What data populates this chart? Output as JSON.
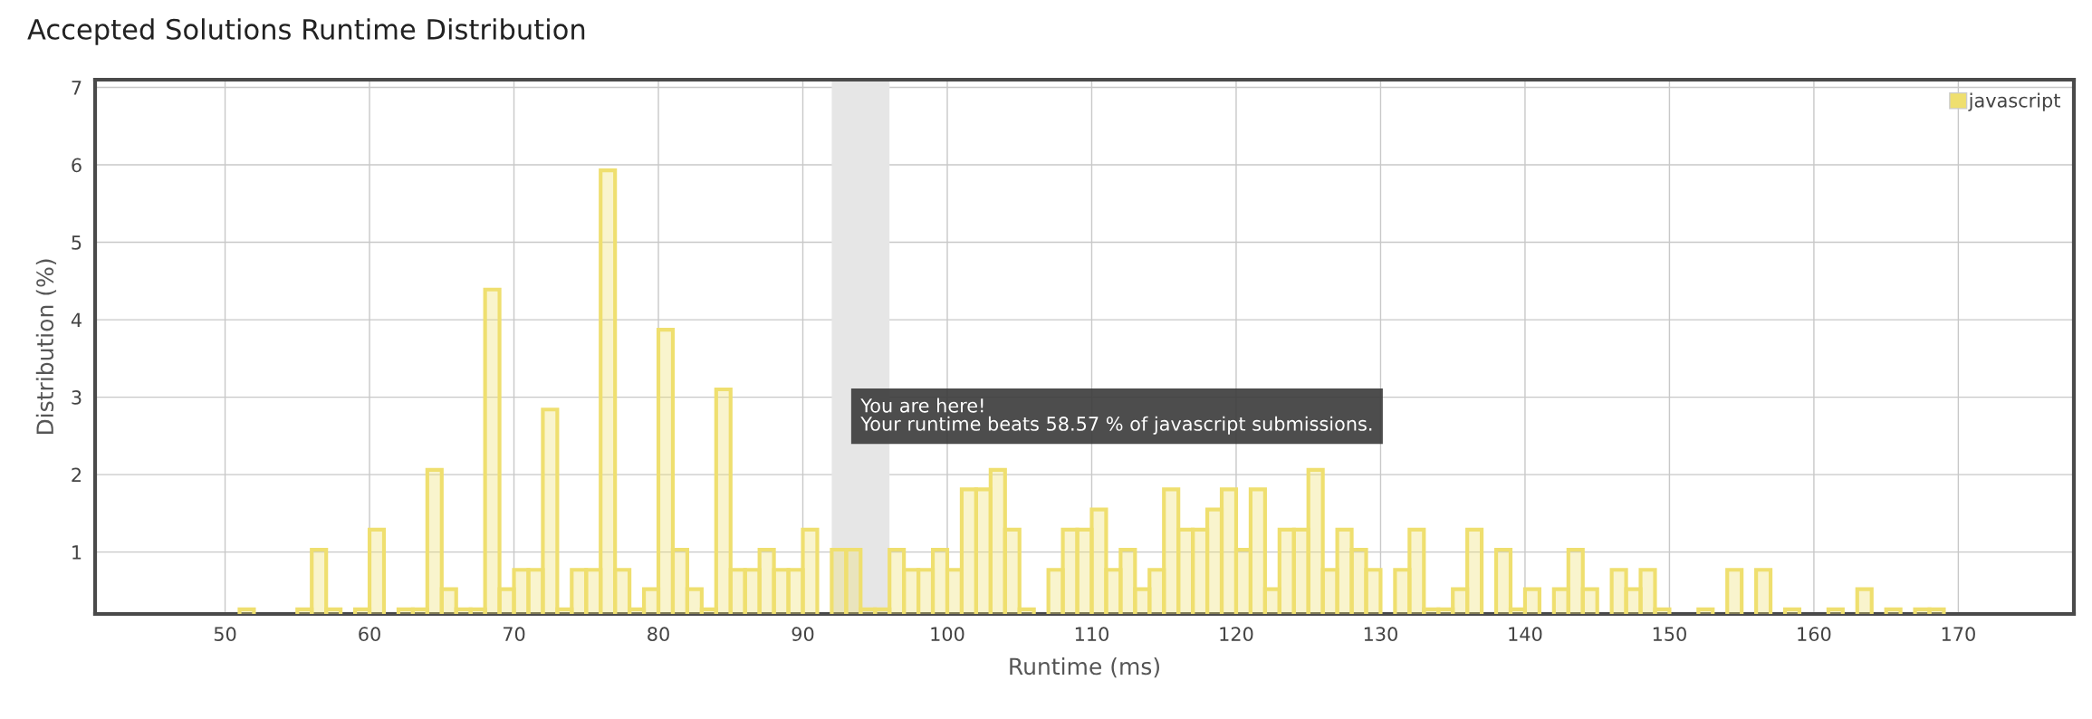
{
  "chart_data": {
    "type": "histogram",
    "title": "Accepted Solutions Runtime Distribution",
    "xlabel": "Runtime (ms)",
    "ylabel": "Distribution (%)",
    "bins": [
      51,
      52,
      53,
      54,
      55,
      56,
      57,
      58,
      59,
      60,
      61,
      62,
      63,
      64,
      65,
      66,
      67,
      68,
      69,
      70,
      71,
      72,
      73,
      74,
      75,
      76,
      77,
      78,
      79,
      80,
      81,
      82,
      83,
      84,
      85,
      86,
      87,
      88,
      89,
      90,
      91,
      92,
      93,
      94,
      95,
      96,
      97,
      98,
      99,
      100,
      101,
      102,
      103,
      104,
      105,
      106,
      107,
      108,
      109,
      110,
      111,
      112,
      113,
      114,
      115,
      116,
      117,
      118,
      119,
      120,
      121,
      122,
      123,
      124,
      125,
      126,
      127,
      128,
      129,
      130,
      131,
      132,
      133,
      134,
      135,
      136,
      137,
      138,
      139,
      140,
      141,
      142,
      143,
      144,
      145,
      146,
      147,
      148,
      149,
      150,
      151,
      152,
      153,
      154,
      155,
      156,
      157,
      158,
      159,
      160,
      161,
      162,
      163,
      164,
      165,
      166,
      167,
      168,
      169
    ],
    "series": [
      {
        "name": "javascript",
        "color": "#efdf6f",
        "values": [
          0.26,
          null,
          null,
          null,
          0.26,
          1.03,
          0.26,
          null,
          0.26,
          1.29,
          null,
          0.26,
          0.26,
          2.06,
          0.52,
          0.26,
          0.26,
          4.39,
          0.52,
          0.77,
          0.77,
          2.84,
          0.26,
          0.77,
          0.77,
          5.93,
          0.77,
          0.26,
          0.52,
          3.87,
          1.03,
          0.52,
          0.26,
          3.1,
          0.77,
          0.77,
          1.03,
          0.77,
          0.77,
          1.29,
          null,
          1.03,
          1.03,
          0.26,
          0.26,
          1.03,
          0.77,
          0.77,
          1.03,
          0.77,
          1.81,
          1.81,
          2.06,
          1.29,
          0.26,
          null,
          0.77,
          1.29,
          1.29,
          1.55,
          0.77,
          1.03,
          0.52,
          0.77,
          1.81,
          1.29,
          1.29,
          1.55,
          1.81,
          1.03,
          1.81,
          0.52,
          1.29,
          1.29,
          2.06,
          0.77,
          1.29,
          1.03,
          0.77,
          null,
          0.77,
          1.29,
          0.26,
          0.26,
          0.52,
          1.29,
          null,
          1.03,
          0.26,
          0.52,
          null,
          0.52,
          1.03,
          0.52,
          null,
          0.77,
          0.52,
          0.77,
          0.26,
          null,
          null,
          0.26,
          null,
          0.77,
          null,
          0.77,
          null,
          0.26,
          null,
          null,
          0.26,
          null,
          0.52,
          null,
          0.26,
          null,
          0.26,
          0.26
        ]
      }
    ],
    "xlim": [
      41,
      178
    ],
    "xticks": [
      50,
      60,
      70,
      80,
      90,
      100,
      110,
      120,
      130,
      140,
      150,
      160,
      170
    ],
    "ylim": [
      0.2,
      7.1
    ],
    "yticks": [
      1,
      2,
      3,
      4,
      5,
      6,
      7
    ],
    "bands": [
      {
        "axis": "x",
        "from": 92,
        "to": 96,
        "color": "#e6e6e6"
      }
    ],
    "annotations": [
      "You are here!\nYour runtime beats 58.57 % of javascript submissions."
    ],
    "grid": true,
    "legend": "top right"
  }
}
